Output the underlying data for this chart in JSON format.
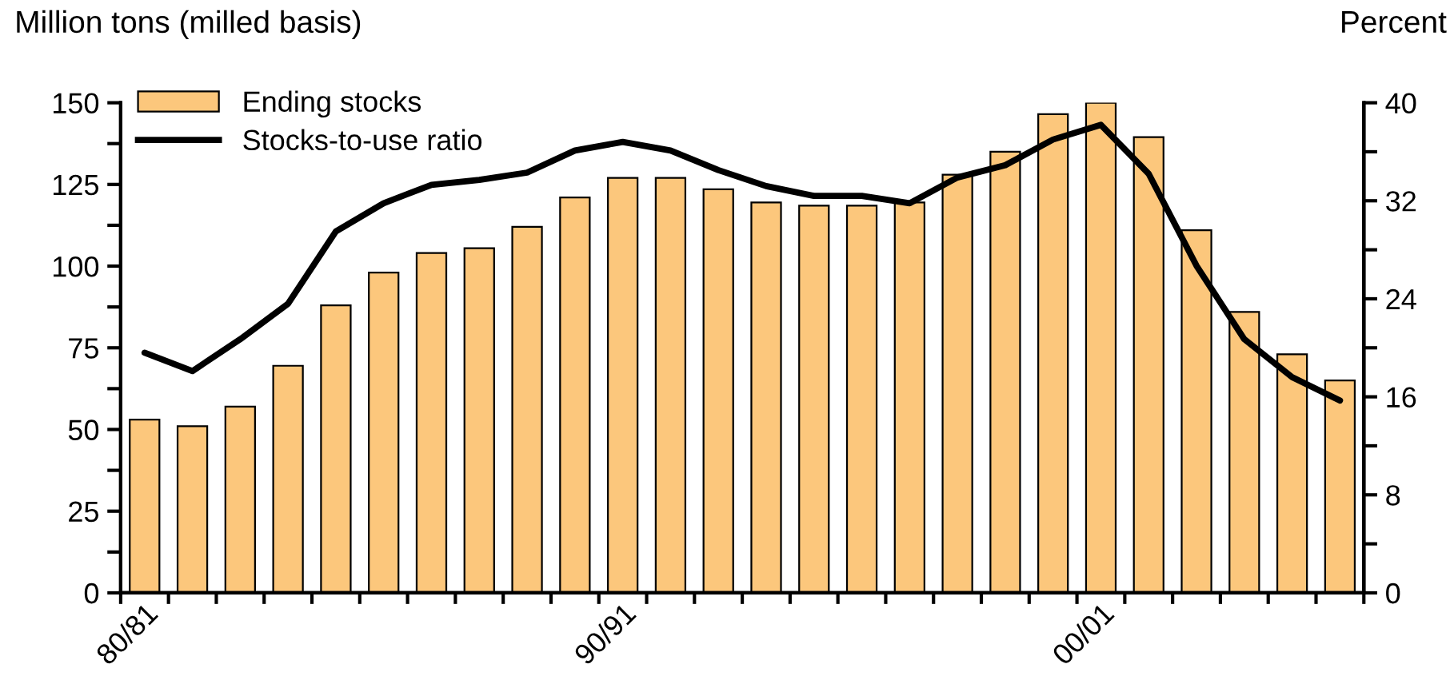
{
  "chart_data": {
    "type": "bar",
    "ylabel": "Million tons (milled basis)",
    "y2label": "Percent",
    "categories": [
      "80/81",
      null,
      null,
      null,
      null,
      null,
      null,
      null,
      null,
      null,
      "90/91",
      null,
      null,
      null,
      null,
      null,
      null,
      null,
      null,
      null,
      "00/01",
      null,
      null,
      null,
      null,
      null
    ],
    "series": [
      {
        "name": "Ending stocks",
        "color": "#fcc77c",
        "values": [
          53,
          51,
          57,
          69.5,
          88,
          98,
          104,
          105.5,
          112,
          121,
          127,
          127,
          123.5,
          119.5,
          118.5,
          118.5,
          119.5,
          128,
          135,
          146.5,
          150,
          139.5,
          111,
          86,
          73,
          65
        ]
      },
      {
        "name": "Stocks-to-use ratio",
        "type": "line",
        "axis": "y2",
        "color": "#000000",
        "values": [
          19.6,
          18.1,
          20.7,
          23.6,
          29.5,
          31.8,
          33.3,
          33.7,
          34.3,
          36.1,
          36.8,
          36.1,
          34.5,
          33.2,
          32.4,
          32.4,
          31.8,
          33.9,
          34.9,
          37.0,
          38.2,
          34.2,
          26.7,
          20.7,
          17.6,
          15.7
        ]
      }
    ],
    "ylim": [
      0,
      150
    ],
    "yticks": [
      0,
      {
        "value": 12.5,
        "label": null
      },
      25,
      {
        "value": 37.5,
        "label": null
      },
      50,
      {
        "value": 62.5,
        "label": null
      },
      75,
      {
        "value": 87.5,
        "label": null
      },
      100,
      {
        "value": 112.5,
        "label": null
      },
      125,
      {
        "value": 137.5,
        "label": null
      },
      150
    ],
    "y2lim": [
      0,
      40
    ],
    "y2ticks": [
      0,
      {
        "value": 4,
        "label": null
      },
      8,
      {
        "value": 12,
        "label": null
      },
      16,
      {
        "value": 20,
        "label": null
      },
      24,
      {
        "value": 28,
        "label": null
      },
      32,
      {
        "value": 36,
        "label": null
      },
      40
    ],
    "legend": "top left",
    "grid": false,
    "marker": "none",
    "line_style": "solid"
  }
}
